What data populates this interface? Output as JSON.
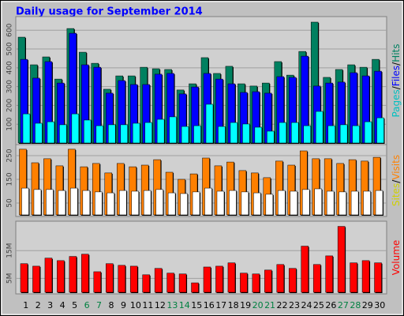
{
  "chart_data": [
    {
      "type": "bar",
      "title": "Daily usage for September 2014",
      "categories": [
        1,
        2,
        3,
        4,
        5,
        6,
        7,
        8,
        9,
        10,
        11,
        12,
        13,
        14,
        15,
        16,
        17,
        18,
        19,
        20,
        21,
        22,
        23,
        24,
        25,
        26,
        27,
        28,
        29,
        30
      ],
      "highlight_categories": [
        6,
        7,
        13,
        14,
        20,
        21,
        27,
        28
      ],
      "highlight_color": "#008040",
      "ylim": [
        0,
        664
      ],
      "yticks": [
        100,
        200,
        300,
        400,
        500,
        600
      ],
      "grid": true,
      "series": [
        {
          "name": "Hits",
          "color": "#008060",
          "text_color": "#008060",
          "values": [
            563,
            416,
            458,
            340,
            609,
            483,
            424,
            286,
            357,
            357,
            403,
            395,
            391,
            282,
            315,
            454,
            370,
            408,
            315,
            303,
            319,
            433,
            361,
            487,
            643,
            349,
            391,
            416,
            403,
            445
          ]
        },
        {
          "name": "Files",
          "color": "#0000ff",
          "text_color": "#0000ff",
          "values": [
            445,
            345,
            433,
            319,
            584,
            416,
            403,
            265,
            332,
            311,
            311,
            366,
            370,
            261,
            298,
            370,
            340,
            315,
            269,
            273,
            265,
            353,
            349,
            462,
            303,
            319,
            324,
            374,
            357,
            382
          ]
        },
        {
          "name": "Pages",
          "color": "#00ffff",
          "text_color": "#00c0c0",
          "values": [
            155,
            105,
            113,
            97,
            155,
            122,
            92,
            97,
            97,
            105,
            109,
            126,
            139,
            88,
            92,
            206,
            88,
            109,
            101,
            84,
            63,
            109,
            109,
            92,
            168,
            92,
            97,
            92,
            113,
            134
          ]
        }
      ]
    },
    {
      "type": "bar",
      "ylim": [
        0,
        290
      ],
      "yticks": [
        50,
        150,
        250
      ],
      "grid": true,
      "series": [
        {
          "name": "Visits",
          "color": "#ff8000",
          "text_color": "#ff8000",
          "values": [
            277,
            220,
            237,
            207,
            277,
            203,
            217,
            177,
            217,
            203,
            210,
            233,
            180,
            150,
            173,
            240,
            207,
            223,
            187,
            177,
            157,
            227,
            210,
            270,
            237,
            237,
            217,
            233,
            227,
            243
          ]
        },
        {
          "name": "Sites",
          "color": "#ffffff",
          "text_color": "#d0d000",
          "values": [
            113,
            107,
            107,
            103,
            113,
            103,
            97,
            93,
            103,
            100,
            103,
            107,
            93,
            90,
            97,
            113,
            100,
            103,
            97,
            93,
            87,
            103,
            100,
            107,
            110,
            100,
            97,
            100,
            100,
            103
          ]
        }
      ]
    },
    {
      "type": "bar",
      "ylim": [
        0,
        25
      ],
      "yticks": [
        {
          "value": 5,
          "label": "5M"
        },
        {
          "value": 15,
          "label": "15M"
        }
      ],
      "grid": true,
      "series": [
        {
          "name": "Volume",
          "color": "#ff0000",
          "text_color": "#ff0000",
          "values": [
            10.3,
            9.4,
            12.3,
            11.4,
            12.9,
            13.7,
            7.4,
            10.3,
            9.7,
            9.4,
            6.3,
            8.6,
            6.9,
            6.6,
            3.4,
            9.1,
            9.4,
            10.6,
            6.9,
            6.6,
            8.0,
            10.0,
            8.6,
            16.6,
            10.0,
            13.1,
            23.7,
            10.6,
            11.4,
            10.6
          ]
        }
      ]
    }
  ]
}
